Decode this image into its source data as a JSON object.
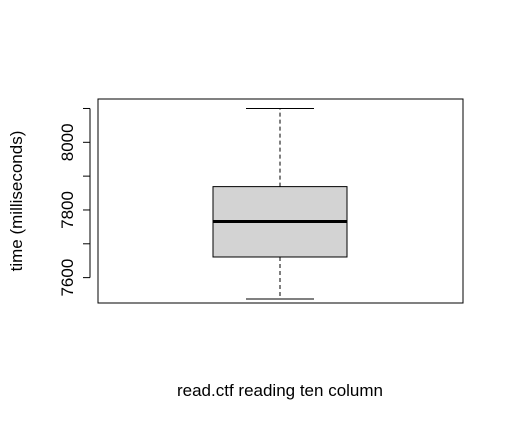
{
  "chart_data": {
    "type": "boxplot",
    "title": "",
    "xlabel": "read.ctf reading ten column",
    "ylabel": "time (milliseconds)",
    "ylim": [
      7525,
      8128
    ],
    "yticks": [
      7600,
      7700,
      7800,
      7900,
      8000,
      8100
    ],
    "ytick_labels": [
      "7600",
      "",
      "7800",
      "",
      "8000",
      ""
    ],
    "box": {
      "whisker_low": 7537,
      "q1": 7661,
      "median": 7766,
      "q3": 7869,
      "whisker_high": 8100
    },
    "box_fill": "#d3d3d3",
    "grid": false
  }
}
